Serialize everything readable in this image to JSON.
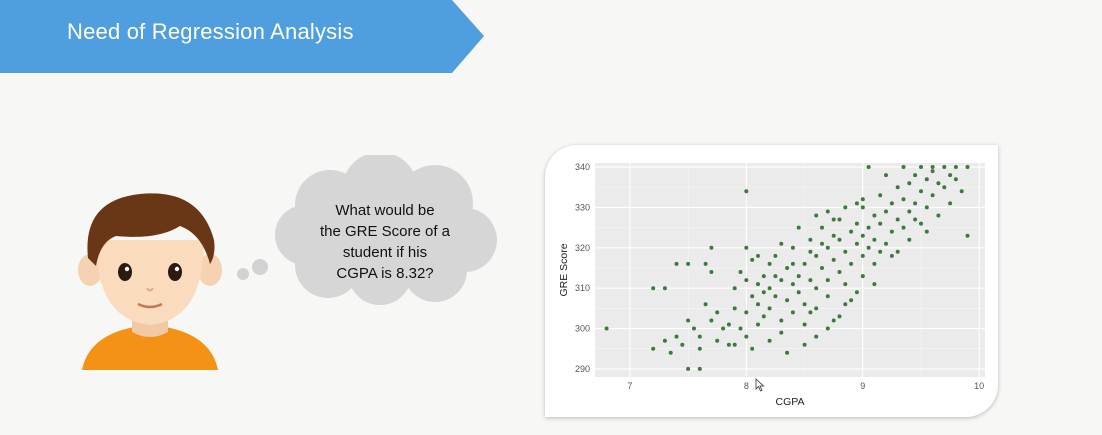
{
  "header": {
    "title": "Need of Regression Analysis",
    "banner_color": "#4f9ee0"
  },
  "thought_bubble": {
    "lines": [
      "What would be",
      "the GRE Score of a",
      "student if his",
      "CGPA is 8.32?"
    ]
  },
  "chart_data": {
    "type": "scatter",
    "xlabel": "CGPA",
    "ylabel": "GRE Score",
    "xlim": [
      6.7,
      10.05
    ],
    "ylim": [
      288,
      341
    ],
    "xticks": [
      7,
      8,
      9,
      10
    ],
    "yticks": [
      290,
      300,
      310,
      320,
      330,
      340
    ],
    "point_color": "#3d7a3d",
    "panel_color": "#ebebeb",
    "grid": true,
    "points": [
      [
        6.8,
        300
      ],
      [
        7.2,
        310
      ],
      [
        7.3,
        310
      ],
      [
        7.4,
        316
      ],
      [
        7.5,
        316
      ],
      [
        7.2,
        295
      ],
      [
        7.3,
        297
      ],
      [
        7.35,
        294
      ],
      [
        7.4,
        298
      ],
      [
        7.45,
        296
      ],
      [
        7.5,
        302
      ],
      [
        7.55,
        300
      ],
      [
        7.6,
        298
      ],
      [
        7.6,
        295
      ],
      [
        7.65,
        306
      ],
      [
        7.65,
        316
      ],
      [
        7.7,
        320
      ],
      [
        7.7,
        302
      ],
      [
        7.75,
        297
      ],
      [
        7.8,
        300
      ],
      [
        7.5,
        290
      ],
      [
        7.6,
        290
      ],
      [
        7.85,
        296
      ],
      [
        7.9,
        305
      ],
      [
        7.95,
        300
      ],
      [
        8.0,
        312
      ],
      [
        8.0,
        298
      ],
      [
        8.0,
        334
      ],
      [
        8.05,
        317
      ],
      [
        8.1,
        306
      ],
      [
        7.85,
        301
      ],
      [
        7.9,
        310
      ],
      [
        7.95,
        314
      ],
      [
        8.0,
        304
      ],
      [
        8.05,
        308
      ],
      [
        8.1,
        311
      ],
      [
        8.1,
        301
      ],
      [
        8.15,
        313
      ],
      [
        8.15,
        303
      ],
      [
        8.2,
        316
      ],
      [
        8.2,
        310
      ],
      [
        8.2,
        305
      ],
      [
        8.25,
        318
      ],
      [
        8.25,
        308
      ],
      [
        8.3,
        312
      ],
      [
        8.3,
        302
      ],
      [
        8.3,
        299
      ],
      [
        8.35,
        315
      ],
      [
        8.35,
        307
      ],
      [
        8.4,
        311
      ],
      [
        8.4,
        304
      ],
      [
        8.4,
        320
      ],
      [
        8.45,
        313
      ],
      [
        8.45,
        309
      ],
      [
        8.5,
        316
      ],
      [
        8.5,
        306
      ],
      [
        8.5,
        301
      ],
      [
        8.55,
        322
      ],
      [
        8.55,
        312
      ],
      [
        8.6,
        318
      ],
      [
        8.6,
        310
      ],
      [
        8.6,
        305
      ],
      [
        8.65,
        325
      ],
      [
        8.65,
        315
      ],
      [
        8.7,
        320
      ],
      [
        8.7,
        312
      ],
      [
        8.7,
        308
      ],
      [
        8.75,
        327
      ],
      [
        8.75,
        317
      ],
      [
        8.8,
        322
      ],
      [
        8.8,
        314
      ],
      [
        8.8,
        303
      ],
      [
        8.85,
        319
      ],
      [
        8.85,
        311
      ],
      [
        8.9,
        324
      ],
      [
        8.9,
        316
      ],
      [
        8.95,
        321
      ],
      [
        8.95,
        326
      ],
      [
        9.0,
        330
      ],
      [
        9.0,
        323
      ],
      [
        9.0,
        318
      ],
      [
        9.05,
        325
      ],
      [
        9.05,
        320
      ],
      [
        9.1,
        328
      ],
      [
        9.1,
        322
      ],
      [
        9.1,
        316
      ],
      [
        9.15,
        333
      ],
      [
        9.15,
        326
      ],
      [
        9.2,
        329
      ],
      [
        9.2,
        321
      ],
      [
        9.25,
        331
      ],
      [
        9.25,
        324
      ],
      [
        9.3,
        335
      ],
      [
        9.3,
        327
      ],
      [
        9.3,
        319
      ],
      [
        9.35,
        332
      ],
      [
        9.35,
        325
      ],
      [
        9.4,
        336
      ],
      [
        9.4,
        329
      ],
      [
        9.45,
        338
      ],
      [
        9.45,
        331
      ],
      [
        9.5,
        340
      ],
      [
        9.5,
        334
      ],
      [
        9.5,
        326
      ],
      [
        9.55,
        337
      ],
      [
        9.55,
        330
      ],
      [
        9.6,
        339
      ],
      [
        9.6,
        333
      ],
      [
        9.65,
        336
      ],
      [
        9.65,
        328
      ],
      [
        9.7,
        340
      ],
      [
        9.7,
        335
      ],
      [
        9.75,
        338
      ],
      [
        9.75,
        331
      ],
      [
        9.8,
        337
      ],
      [
        9.85,
        334
      ],
      [
        9.9,
        340
      ],
      [
        9.9,
        323
      ],
      [
        9.8,
        340
      ],
      [
        9.6,
        340
      ],
      [
        9.05,
        340
      ],
      [
        9.2,
        338
      ],
      [
        9.35,
        340
      ],
      [
        9.0,
        332
      ],
      [
        8.95,
        331
      ],
      [
        9.1,
        311
      ],
      [
        8.9,
        307
      ],
      [
        8.75,
        302
      ],
      [
        8.6,
        298
      ],
      [
        8.5,
        296
      ],
      [
        8.35,
        294
      ],
      [
        8.2,
        297
      ],
      [
        8.05,
        295
      ],
      [
        7.9,
        296
      ],
      [
        7.75,
        304
      ],
      [
        7.7,
        314
      ],
      [
        8.0,
        320
      ],
      [
        8.1,
        318
      ],
      [
        8.3,
        321
      ],
      [
        8.45,
        325
      ],
      [
        8.6,
        328
      ],
      [
        8.7,
        329
      ],
      [
        8.8,
        327
      ],
      [
        8.55,
        319
      ],
      [
        8.4,
        316
      ],
      [
        8.25,
        313
      ],
      [
        8.15,
        309
      ],
      [
        8.65,
        321
      ],
      [
        8.75,
        323
      ],
      [
        8.85,
        330
      ],
      [
        9.25,
        318
      ],
      [
        9.4,
        322
      ],
      [
        9.55,
        324
      ],
      [
        9.45,
        327
      ],
      [
        9.15,
        319
      ],
      [
        9.0,
        313
      ],
      [
        8.95,
        309
      ],
      [
        8.85,
        306
      ],
      [
        8.7,
        300
      ],
      [
        8.55,
        304
      ]
    ]
  }
}
